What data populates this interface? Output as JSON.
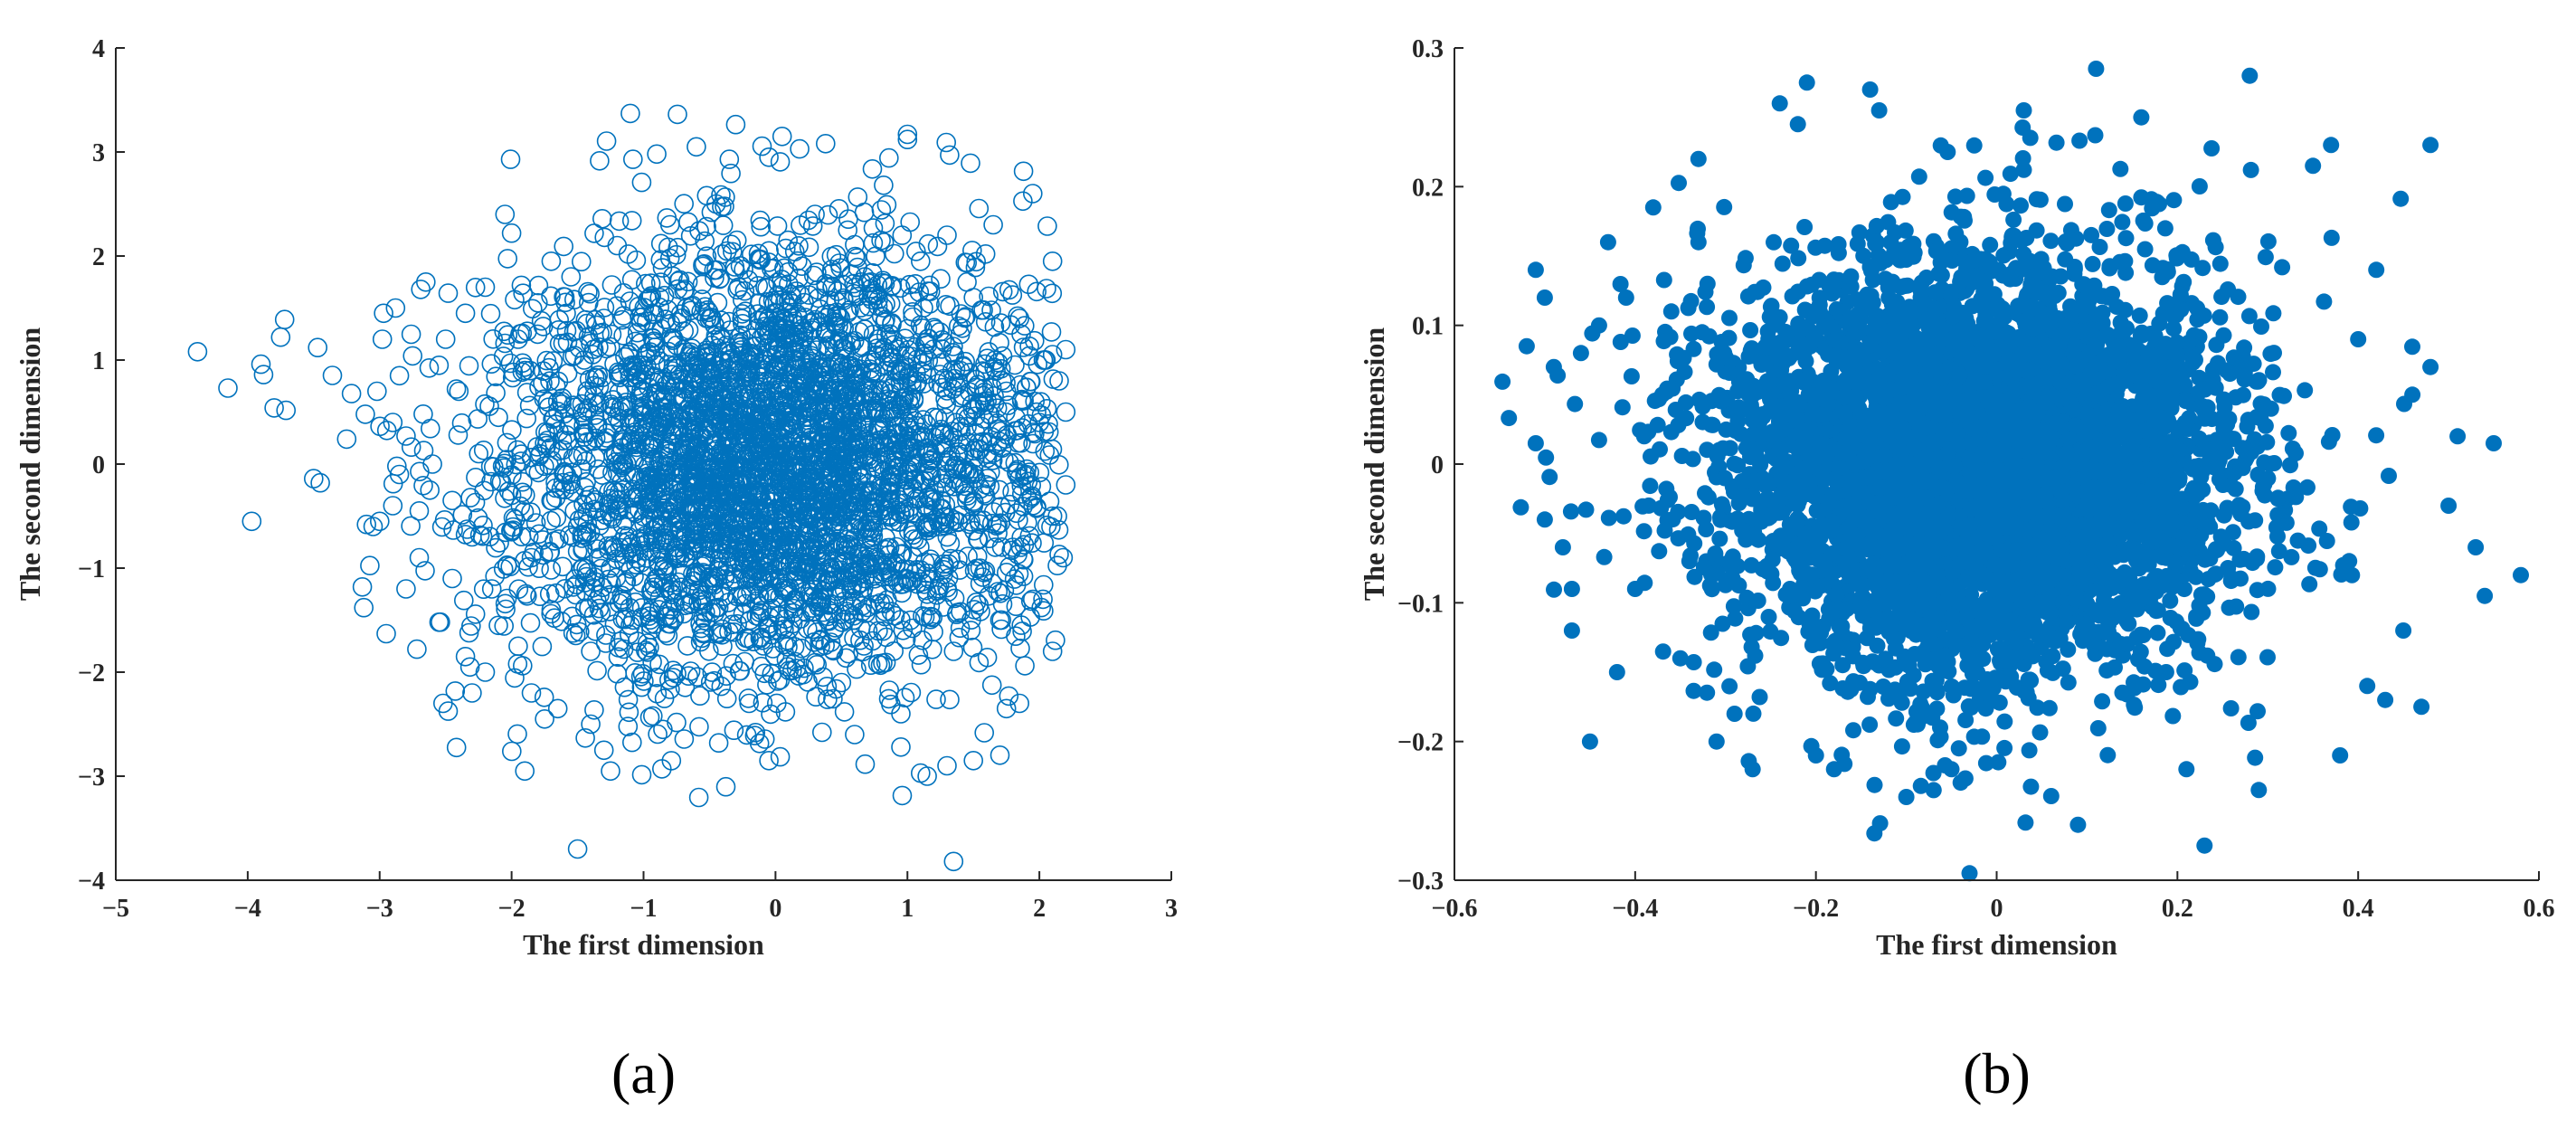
{
  "colors": {
    "marker": "#0072BD",
    "axis": "#262626"
  },
  "chart_data": [
    {
      "type": "scatter",
      "panel_label": "(a)",
      "marker": "hollow-circle",
      "xlabel": "The first dimension",
      "ylabel": "The second dimension",
      "xlim": [
        -5,
        3
      ],
      "ylim": [
        -4,
        4
      ],
      "xticks": [
        -5,
        -4,
        -3,
        -2,
        -1,
        0,
        1,
        2,
        3
      ],
      "yticks": [
        -4,
        -3,
        -2,
        -1,
        0,
        1,
        2,
        3,
        4
      ],
      "xtick_labels": [
        "−5",
        "−4",
        "−3",
        "−2",
        "−1",
        "0",
        "1",
        "2",
        "3"
      ],
      "ytick_labels": [
        "−4",
        "−3",
        "−2",
        "−1",
        "0",
        "1",
        "2",
        "3",
        "4"
      ],
      "grid": false,
      "points": [
        [
          -4.38,
          1.08
        ],
        [
          -4.15,
          0.73
        ],
        [
          -3.97,
          -0.55
        ],
        [
          -3.9,
          0.96
        ],
        [
          -3.88,
          0.86
        ],
        [
          -3.8,
          0.54
        ],
        [
          -3.75,
          1.22
        ],
        [
          -3.72,
          1.39
        ],
        [
          -3.5,
          -0.14
        ],
        [
          -3.47,
          1.12
        ],
        [
          -3.45,
          -0.18
        ],
        [
          -3.25,
          0.24
        ],
        [
          -3.12,
          -1.38
        ],
        [
          -3.1,
          -0.58
        ],
        [
          -3.05,
          -0.6
        ],
        [
          -3.0,
          -0.55
        ],
        [
          -2.98,
          1.2
        ],
        [
          -2.97,
          1.45
        ],
        [
          -2.95,
          -1.63
        ],
        [
          -2.9,
          0.4
        ],
        [
          -2.88,
          1.5
        ],
        [
          -2.85,
          0.85
        ],
        [
          -2.8,
          0.27
        ],
        [
          -2.75,
          1.04
        ],
        [
          -2.7,
          -0.45
        ],
        [
          -2.67,
          0.48
        ],
        [
          -2.62,
          -0.25
        ],
        [
          -2.55,
          -1.52
        ],
        [
          -2.52,
          -2.3
        ],
        [
          -2.5,
          1.2
        ],
        [
          -2.45,
          -1.1
        ],
        [
          -2.35,
          -1.85
        ],
        [
          -2.3,
          -2.2
        ],
        [
          -2.2,
          -2.0
        ],
        [
          -2.1,
          -1.55
        ],
        [
          -2.05,
          2.4
        ],
        [
          -2.0,
          2.22
        ],
        [
          -1.95,
          -1.75
        ],
        [
          -1.9,
          -2.95
        ],
        [
          -1.85,
          -2.2
        ],
        [
          -1.75,
          -2.45
        ],
        [
          -1.7,
          1.95
        ],
        [
          -1.65,
          -2.35
        ],
        [
          -1.5,
          -3.7
        ],
        [
          -1.4,
          -2.5
        ],
        [
          -1.3,
          -2.75
        ],
        [
          -1.25,
          -2.95
        ],
        [
          -1.1,
          3.37
        ],
        [
          -1.08,
          2.93
        ],
        [
          -0.9,
          2.98
        ],
        [
          -0.6,
          3.05
        ],
        [
          -0.35,
          2.93
        ],
        [
          -0.05,
          2.95
        ],
        [
          -0.05,
          -2.85
        ],
        [
          0.05,
          3.15
        ],
        [
          0.38,
          3.08
        ],
        [
          0.6,
          -2.6
        ],
        [
          0.95,
          -2.72
        ],
        [
          1.0,
          3.17
        ],
        [
          1.0,
          3.12
        ],
        [
          1.1,
          -2.97
        ],
        [
          1.15,
          -3.0
        ],
        [
          1.3,
          -2.9
        ],
        [
          1.32,
          2.97
        ],
        [
          1.35,
          -3.82
        ],
        [
          1.5,
          -2.85
        ],
        [
          1.75,
          -2.35
        ],
        [
          1.85,
          -2.3
        ],
        [
          1.95,
          2.6
        ],
        [
          2.1,
          1.95
        ],
        [
          2.1,
          -1.8
        ],
        [
          2.2,
          1.1
        ],
        [
          2.2,
          0.5
        ],
        [
          2.2,
          -0.2
        ],
        [
          2.18,
          -0.9
        ],
        [
          2.15,
          0.8
        ],
        [
          -2.4,
          0.7
        ],
        [
          -2.3,
          -0.7
        ],
        [
          -2.25,
          0.1
        ],
        [
          -2.2,
          1.7
        ],
        [
          -2.15,
          -1.2
        ],
        [
          -2.1,
          0.45
        ],
        [
          -2.0,
          -0.3
        ],
        [
          -1.95,
          1.2
        ],
        [
          -1.9,
          0.9
        ],
        [
          -1.85,
          -0.9
        ],
        [
          -1.8,
          1.55
        ],
        [
          -1.75,
          0.2
        ],
        [
          -1.7,
          -1.4
        ],
        [
          -1.65,
          0.6
        ],
        [
          -1.6,
          -0.1
        ],
        [
          -1.55,
          1.8
        ],
        [
          -1.5,
          -0.6
        ],
        [
          -1.45,
          1.0
        ],
        [
          -1.4,
          -1.8
        ],
        [
          -1.35,
          0.35
        ],
        [
          -1.3,
          1.4
        ],
        [
          -1.25,
          -1.0
        ],
        [
          -1.2,
          2.1
        ],
        [
          -1.15,
          0.0
        ],
        [
          -1.1,
          -1.55
        ],
        [
          -1.05,
          0.75
        ],
        [
          -1.0,
          -0.35
        ],
        [
          -0.95,
          1.6
        ],
        [
          -0.9,
          -2.05
        ],
        [
          -0.85,
          0.4
        ],
        [
          -0.8,
          2.3
        ],
        [
          -0.75,
          -0.8
        ],
        [
          -0.7,
          1.1
        ],
        [
          -0.65,
          -1.35
        ],
        [
          -0.6,
          0.15
        ],
        [
          -0.55,
          1.9
        ],
        [
          -0.5,
          -0.5
        ],
        [
          -0.45,
          2.5
        ],
        [
          -0.4,
          -1.75
        ],
        [
          -0.35,
          0.9
        ],
        [
          -0.3,
          -0.2
        ],
        [
          -0.25,
          1.35
        ],
        [
          -0.2,
          -2.3
        ],
        [
          -0.15,
          0.55
        ],
        [
          -0.1,
          -1.1
        ],
        [
          -0.05,
          2.05
        ],
        [
          0.0,
          0.1
        ],
        [
          0.05,
          -0.7
        ],
        [
          0.1,
          1.5
        ],
        [
          0.15,
          -1.9
        ],
        [
          0.2,
          0.8
        ],
        [
          0.25,
          -0.3
        ],
        [
          0.3,
          2.4
        ],
        [
          0.35,
          -1.3
        ],
        [
          0.4,
          0.35
        ],
        [
          0.45,
          1.15
        ],
        [
          0.5,
          -2.1
        ],
        [
          0.55,
          0.95
        ],
        [
          0.6,
          -0.45
        ],
        [
          0.65,
          1.75
        ],
        [
          0.7,
          -1.6
        ],
        [
          0.75,
          0.2
        ],
        [
          0.8,
          2.15
        ],
        [
          0.85,
          -0.95
        ],
        [
          0.9,
          0.6
        ],
        [
          0.95,
          -2.4
        ],
        [
          1.0,
          1.3
        ],
        [
          1.05,
          -0.15
        ],
        [
          1.1,
          1.95
        ],
        [
          1.15,
          -1.25
        ],
        [
          1.2,
          0.45
        ],
        [
          1.25,
          -0.6
        ],
        [
          1.3,
          2.2
        ],
        [
          1.35,
          -1.8
        ],
        [
          1.4,
          0.9
        ],
        [
          1.45,
          -0.35
        ],
        [
          1.5,
          1.6
        ],
        [
          1.55,
          -1.0
        ],
        [
          1.6,
          0.1
        ],
        [
          1.65,
          2.3
        ],
        [
          1.7,
          -1.5
        ],
        [
          1.75,
          0.7
        ],
        [
          1.8,
          -0.8
        ],
        [
          1.85,
          1.4
        ],
        [
          1.9,
          -0.1
        ],
        [
          1.95,
          -1.3
        ],
        [
          2.0,
          0.4
        ],
        [
          2.05,
          1.0
        ],
        [
          2.1,
          -0.5
        ],
        [
          -2.6,
          0.0
        ],
        [
          -2.55,
          0.95
        ],
        [
          -2.45,
          -0.35
        ],
        [
          -2.35,
          1.45
        ],
        [
          -2.7,
          -0.9
        ],
        [
          -2.8,
          -1.2
        ],
        [
          -2.65,
          1.75
        ],
        [
          -2.9,
          -0.4
        ],
        [
          -3.02,
          0.7
        ],
        [
          -2.85,
          -0.1
        ]
      ],
      "density_center": [
        0.0,
        0.0
      ],
      "density_spread": [
        1.0,
        1.0
      ],
      "density_count": 3800
    },
    {
      "type": "scatter",
      "panel_label": "(b)",
      "marker": "filled-circle",
      "xlabel": "The first dimension",
      "ylabel": "The second dimension",
      "xlim": [
        -0.6,
        0.6
      ],
      "ylim": [
        -0.3,
        0.3
      ],
      "xticks": [
        -0.6,
        -0.4,
        -0.2,
        0,
        0.2,
        0.4,
        0.6
      ],
      "yticks": [
        -0.3,
        -0.2,
        -0.1,
        0,
        0.1,
        0.2,
        0.3
      ],
      "xtick_labels": [
        "−0.6",
        "−0.4",
        "−0.2",
        "0",
        "0.2",
        "0.4",
        "0.6"
      ],
      "ytick_labels": [
        "−0.3",
        "−0.2",
        "−0.1",
        "0",
        "0.1",
        "0.2",
        "0.3"
      ],
      "grid": false,
      "points": [
        [
          -0.52,
          0.085
        ],
        [
          -0.51,
          0.14
        ],
        [
          -0.5,
          0.12
        ],
        [
          -0.51,
          0.015
        ],
        [
          -0.5,
          -0.04
        ],
        [
          -0.49,
          0.07
        ],
        [
          -0.48,
          -0.06
        ],
        [
          -0.47,
          -0.09
        ],
        [
          -0.47,
          -0.12
        ],
        [
          -0.46,
          0.08
        ],
        [
          -0.45,
          -0.2
        ],
        [
          -0.44,
          0.1
        ],
        [
          -0.43,
          0.16
        ],
        [
          -0.42,
          -0.15
        ],
        [
          -0.41,
          0.12
        ],
        [
          -0.4,
          -0.09
        ],
        [
          -0.38,
          0.185
        ],
        [
          -0.36,
          0.11
        ],
        [
          -0.33,
          0.22
        ],
        [
          -0.32,
          0.13
        ],
        [
          -0.31,
          -0.2
        ],
        [
          -0.29,
          -0.18
        ],
        [
          -0.27,
          -0.22
        ],
        [
          -0.24,
          0.26
        ],
        [
          -0.22,
          0.245
        ],
        [
          -0.21,
          0.275
        ],
        [
          -0.2,
          -0.21
        ],
        [
          -0.18,
          -0.22
        ],
        [
          -0.14,
          0.27
        ],
        [
          -0.13,
          0.255
        ],
        [
          -0.1,
          -0.24
        ],
        [
          -0.05,
          -0.22
        ],
        [
          -0.03,
          -0.295
        ],
        [
          0.03,
          0.255
        ],
        [
          0.09,
          -0.26
        ],
        [
          0.11,
          0.285
        ],
        [
          0.16,
          0.25
        ],
        [
          0.21,
          -0.22
        ],
        [
          0.23,
          -0.275
        ],
        [
          0.28,
          0.28
        ],
        [
          0.29,
          -0.235
        ],
        [
          0.35,
          0.215
        ],
        [
          0.37,
          0.23
        ],
        [
          0.38,
          -0.21
        ],
        [
          0.41,
          -0.16
        ],
        [
          0.43,
          -0.17
        ],
        [
          0.47,
          -0.175
        ],
        [
          0.48,
          0.23
        ],
        [
          0.48,
          0.07
        ],
        [
          0.51,
          0.02
        ],
        [
          0.53,
          -0.06
        ],
        [
          0.54,
          -0.095
        ],
        [
          0.55,
          0.015
        ],
        [
          0.58,
          -0.08
        ],
        [
          0.5,
          -0.03
        ],
        [
          0.46,
          0.05
        ],
        [
          0.45,
          -0.12
        ],
        [
          0.42,
          0.14
        ],
        [
          0.4,
          0.09
        ],
        [
          0.39,
          -0.07
        ],
        [
          -0.35,
          -0.14
        ],
        [
          -0.37,
          0.05
        ],
        [
          -0.34,
          -0.07
        ],
        [
          -0.39,
          0.02
        ],
        [
          -0.33,
          0.16
        ]
      ],
      "density_center": [
        -0.02,
        0.0
      ],
      "density_spread": [
        0.14,
        0.075
      ],
      "density_count": 5200
    }
  ]
}
